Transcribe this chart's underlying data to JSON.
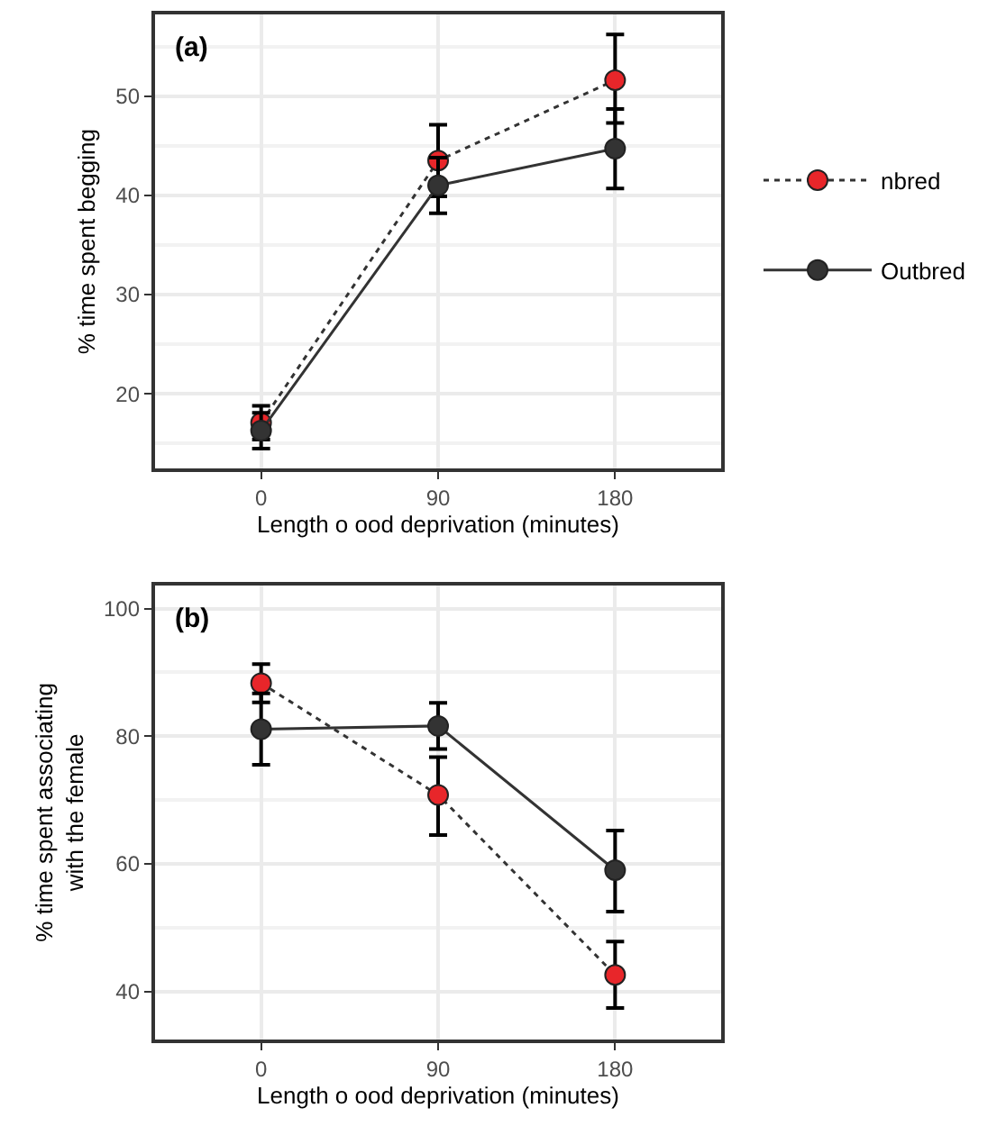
{
  "chart_data": [
    {
      "type": "line",
      "title": "(a)",
      "xlabel": "Length o ood deprivation (minutes)",
      "ylabel": "% time spent begging",
      "x": [
        0,
        90,
        180
      ],
      "xlim": [
        -54,
        234
      ],
      "xticks": [
        0,
        90,
        180
      ],
      "ylim": [
        12.5,
        58.2
      ],
      "yticks": [
        20,
        30,
        40,
        50
      ],
      "grid": true,
      "legend": "right",
      "marker": "circle",
      "series": [
        {
          "name": "nbred",
          "color": "#e8262a",
          "line_style": "dotted",
          "values": [
            17.1,
            43.5,
            51.6
          ],
          "errors": [
            [
              15.4,
              18.8
            ],
            [
              39.9,
              47.1
            ],
            [
              47.3,
              56.2
            ]
          ]
        },
        {
          "name": "Outbred",
          "color": "#333333",
          "line_style": "solid",
          "values": [
            16.3,
            41.0,
            44.7
          ],
          "errors": [
            [
              14.5,
              18.1
            ],
            [
              38.2,
              43.8
            ],
            [
              40.7,
              48.7
            ]
          ]
        }
      ]
    },
    {
      "type": "line",
      "title": "(b)",
      "xlabel": "Length o ood deprivation (minutes)",
      "ylabel": "% time spent associating\nwith the female",
      "x": [
        0,
        90,
        180
      ],
      "xlim": [
        -54,
        234
      ],
      "xticks": [
        0,
        90,
        180
      ],
      "ylim": [
        32.5,
        103.6
      ],
      "yticks": [
        40,
        60,
        80,
        100
      ],
      "grid": true,
      "legend": false,
      "marker": "circle",
      "series": [
        {
          "color": "#e8262a",
          "line_style": "dotted",
          "values": [
            88.3,
            70.8,
            42.6
          ],
          "errors": [
            [
              85.3,
              91.3
            ],
            [
              64.5,
              76.7
            ],
            [
              37.4,
              47.8
            ]
          ]
        },
        {
          "color": "#333333",
          "line_style": "solid",
          "values": [
            81.1,
            81.6,
            59.0
          ],
          "errors": [
            [
              75.5,
              86.7
            ],
            [
              78.0,
              85.2
            ],
            [
              52.5,
              65.2
            ]
          ]
        }
      ]
    }
  ]
}
